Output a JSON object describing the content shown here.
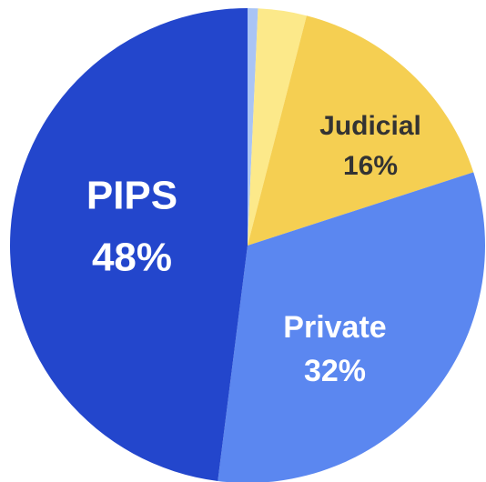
{
  "chart_data": {
    "type": "pie",
    "categories": [
      null,
      null,
      "Judicial",
      "Private",
      "PIPS"
    ],
    "values": [
      0.7,
      3.3,
      16,
      32,
      48
    ],
    "value_labels": [
      null,
      null,
      "16%",
      "32%",
      "48%"
    ],
    "colors": [
      "#a9c4f5",
      "#fce98a",
      "#f5cf52",
      "#5b87f0",
      "#2346cc"
    ]
  }
}
